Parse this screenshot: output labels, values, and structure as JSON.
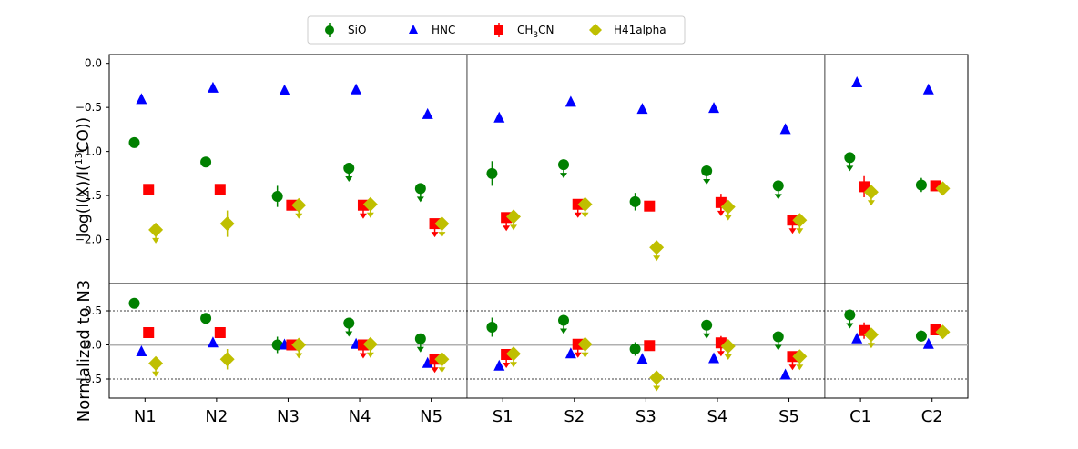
{
  "chart_data": {
    "type": "scatter",
    "categories": [
      "N1",
      "N2",
      "N3",
      "N4",
      "N5",
      "S1",
      "S2",
      "S3",
      "S4",
      "S5",
      "C1",
      "C2"
    ],
    "group_separators_after": [
      "N5",
      "S5"
    ],
    "legend": {
      "placement": "top-center",
      "entries": [
        {
          "id": "SiO",
          "label_main": "SiO",
          "label_sub": "",
          "label_tail": "",
          "marker": "circle",
          "color": "#008000"
        },
        {
          "id": "HNC",
          "label_main": "HNC",
          "label_sub": "",
          "label_tail": "",
          "marker": "triangle",
          "color": "#0000ff"
        },
        {
          "id": "CH3CN",
          "label_main": "CH",
          "label_sub": "3",
          "label_tail": "CN",
          "marker": "square",
          "color": "#ff0000"
        },
        {
          "id": "H41alpha",
          "label_main": "H41alpha",
          "label_sub": "",
          "label_tail": "",
          "marker": "diamond",
          "color": "#bfbf00"
        }
      ]
    },
    "top_panel": {
      "ylabel_main": "log(I(X)/I(",
      "ylabel_sup": "13",
      "ylabel_tail": "CO))",
      "ylim": [
        -2.5,
        0.1
      ],
      "yticks": [
        0.0,
        -0.5,
        -1.0,
        -1.5,
        -2.0
      ],
      "ytick_labels": [
        "0.0",
        "−0.5",
        "−1.0",
        "−1.5",
        "−2.0"
      ],
      "series": [
        {
          "name": "SiO",
          "marker": "circle",
          "color": "#008000",
          "offset": -0.15,
          "values": [
            -0.9,
            -1.12,
            -1.51,
            -1.19,
            -1.42,
            -1.25,
            -1.15,
            -1.57,
            -1.22,
            -1.39,
            -1.07,
            -1.38
          ],
          "errors": [
            0,
            0.03,
            0.12,
            0.04,
            0.05,
            0.14,
            0.05,
            0.1,
            0.05,
            0.04,
            0.05,
            0.08
          ],
          "upper_limit": [
            false,
            false,
            false,
            true,
            true,
            false,
            true,
            false,
            true,
            true,
            true,
            false
          ]
        },
        {
          "name": "HNC",
          "marker": "triangle",
          "color": "#0000ff",
          "offset": -0.05,
          "values": [
            -0.41,
            -0.28,
            -0.31,
            -0.3,
            -0.58,
            -0.62,
            -0.44,
            -0.52,
            -0.51,
            -0.75,
            -0.22,
            -0.3
          ],
          "errors": [
            0,
            0,
            0,
            0,
            0,
            0,
            0,
            0,
            0,
            0,
            0,
            0
          ],
          "upper_limit": [
            false,
            false,
            false,
            false,
            false,
            false,
            false,
            false,
            false,
            false,
            false,
            false
          ]
        },
        {
          "name": "CH3CN",
          "marker": "square",
          "color": "#ff0000",
          "offset": 0.05,
          "values": [
            -1.43,
            -1.43,
            -1.61,
            -1.61,
            -1.82,
            -1.75,
            -1.6,
            -1.62,
            -1.58,
            -1.78,
            -1.4,
            -1.39
          ],
          "errors": [
            0,
            0,
            0,
            0.05,
            0.03,
            0.04,
            0.03,
            0,
            0.1,
            0.03,
            0.12,
            0
          ],
          "upper_limit": [
            false,
            false,
            false,
            true,
            true,
            true,
            true,
            false,
            true,
            true,
            false,
            false
          ]
        },
        {
          "name": "H41alpha",
          "marker": "diamond",
          "color": "#bfbf00",
          "offset": 0.15,
          "values": [
            -1.89,
            -1.82,
            -1.61,
            -1.6,
            -1.82,
            -1.74,
            -1.6,
            -2.09,
            -1.63,
            -1.78,
            -1.46,
            -1.42
          ],
          "errors": [
            0,
            0.15,
            0,
            0.04,
            0.04,
            0.04,
            0.03,
            0,
            0.04,
            0.04,
            0.06,
            0
          ],
          "upper_limit": [
            true,
            false,
            true,
            true,
            true,
            true,
            true,
            true,
            true,
            true,
            true,
            false
          ]
        }
      ]
    },
    "bottom_panel": {
      "ylabel": "Normalized to N3",
      "ylim": [
        -0.78,
        0.9
      ],
      "yticks": [
        0.5,
        0.0,
        -0.5
      ],
      "ytick_labels": [
        "0.5",
        "0.0",
        "−0.5"
      ],
      "reference_lines": [
        0.5,
        -0.5
      ],
      "zero_line": 0.0,
      "series": [
        {
          "name": "SiO",
          "values": [
            0.61,
            0.39,
            0.0,
            0.32,
            0.09,
            0.26,
            0.36,
            -0.06,
            0.29,
            0.12,
            0.44,
            0.13
          ],
          "errors": [
            0,
            0.03,
            0.12,
            0.04,
            0.05,
            0.14,
            0.05,
            0.1,
            0.05,
            0.04,
            0.05,
            0.08
          ],
          "upper_limit": [
            false,
            false,
            false,
            true,
            true,
            false,
            true,
            false,
            true,
            true,
            true,
            false
          ]
        },
        {
          "name": "HNC",
          "values": [
            -0.1,
            0.03,
            0.0,
            0.01,
            -0.27,
            -0.31,
            -0.13,
            -0.21,
            -0.2,
            -0.44,
            0.09,
            0.01
          ],
          "errors": [
            0,
            0,
            0,
            0,
            0,
            0,
            0,
            0,
            0,
            0,
            0,
            0
          ],
          "upper_limit": [
            false,
            false,
            false,
            false,
            false,
            false,
            false,
            false,
            false,
            false,
            false,
            false
          ]
        },
        {
          "name": "CH3CN",
          "values": [
            0.18,
            0.18,
            0.0,
            0.0,
            -0.21,
            -0.14,
            0.01,
            -0.01,
            0.03,
            -0.17,
            0.21,
            0.22
          ],
          "errors": [
            0,
            0,
            0,
            0.05,
            0.03,
            0.04,
            0.03,
            0,
            0.1,
            0.03,
            0.12,
            0
          ],
          "upper_limit": [
            false,
            false,
            false,
            true,
            true,
            true,
            true,
            false,
            true,
            true,
            false,
            false
          ]
        },
        {
          "name": "H41alpha",
          "values": [
            -0.27,
            -0.21,
            0.0,
            0.01,
            -0.21,
            -0.13,
            0.01,
            -0.48,
            -0.02,
            -0.17,
            0.15,
            0.19
          ],
          "errors": [
            0,
            0.15,
            0,
            0.04,
            0.04,
            0.04,
            0.03,
            0,
            0.04,
            0.04,
            0.06,
            0
          ],
          "upper_limit": [
            true,
            false,
            true,
            true,
            true,
            true,
            true,
            true,
            true,
            true,
            true,
            false
          ]
        }
      ]
    }
  }
}
